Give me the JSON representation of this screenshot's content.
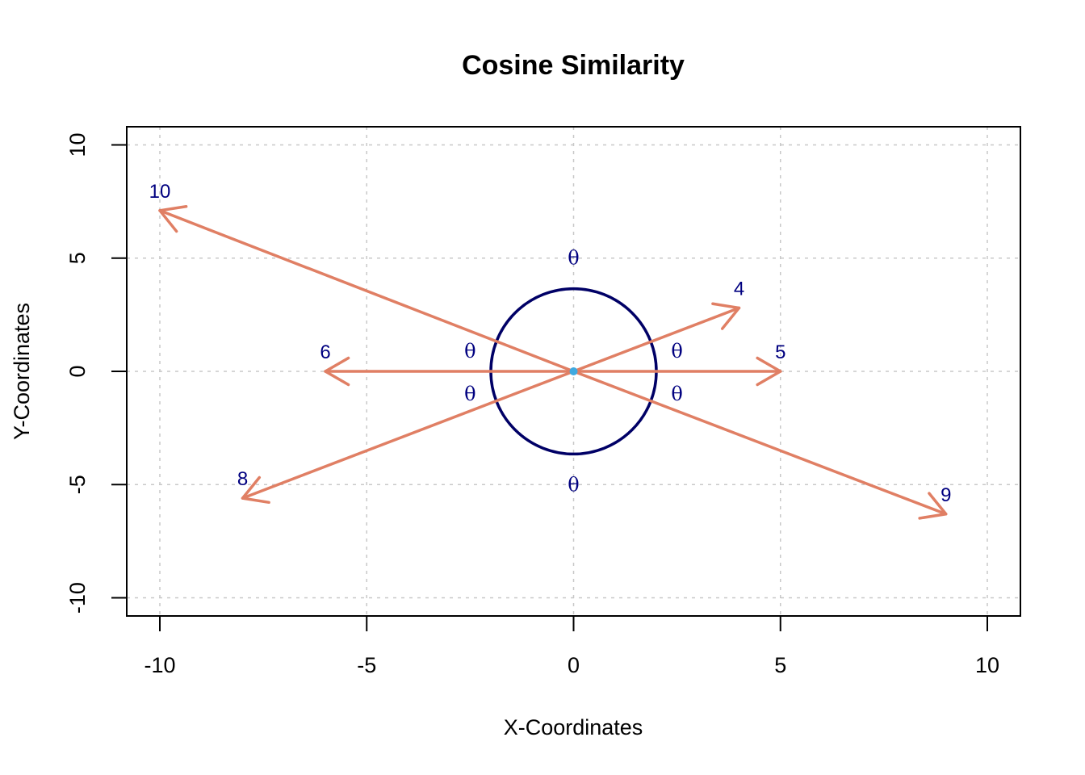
{
  "chart_data": {
    "type": "scatter",
    "title": "Cosine Similarity",
    "xlabel": "X-Coordinates",
    "ylabel": "Y-Coordinates",
    "xlim": [
      -10.8,
      10.8
    ],
    "ylim": [
      -10.8,
      10.8
    ],
    "xticks": [
      -10,
      -5,
      0,
      5,
      10
    ],
    "yticks": [
      -10,
      -5,
      0,
      5,
      10
    ],
    "grid": true,
    "origin": [
      0,
      0
    ],
    "vectors": [
      {
        "label": "4",
        "x": 4,
        "y": 2.8
      },
      {
        "label": "5",
        "x": 5,
        "y": 0
      },
      {
        "label": "6",
        "x": -6,
        "y": 0
      },
      {
        "label": "8",
        "x": -8,
        "y": -5.6
      },
      {
        "label": "9",
        "x": 9,
        "y": -6.3
      },
      {
        "label": "10",
        "x": -10,
        "y": 7.1
      }
    ],
    "circle": {
      "center": [
        0,
        0
      ],
      "radius_x": 2,
      "radius_y": 3.65
    },
    "angle_label": "θ",
    "angle_marks": [
      {
        "x": 0,
        "y": 5
      },
      {
        "x": 0,
        "y": -5
      },
      {
        "x": -2.5,
        "y": 0.9
      },
      {
        "x": 2.5,
        "y": 0.9
      },
      {
        "x": -2.5,
        "y": -1
      },
      {
        "x": 2.5,
        "y": -1
      }
    ],
    "colors": {
      "vector": "#E07F64",
      "circle": "#000066",
      "label": "#000080",
      "origin": "#3FA9E0",
      "grid": "#C8C8C8"
    }
  }
}
